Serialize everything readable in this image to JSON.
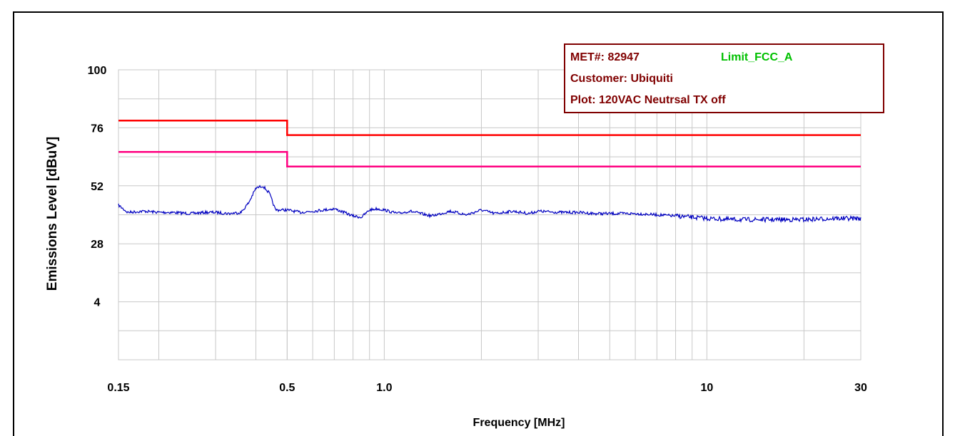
{
  "chart_data": {
    "type": "line",
    "xlabel": "Frequency [MHz]",
    "ylabel": "Emissions Level [dBuV]",
    "x_scale": "log",
    "xlim": [
      0.15,
      30
    ],
    "ylim": [
      -20,
      100
    ],
    "x_ticks": [
      {
        "value": 0.15,
        "label": "0.15"
      },
      {
        "value": 0.5,
        "label": "0.5"
      },
      {
        "value": 1.0,
        "label": "1.0"
      },
      {
        "value": 10,
        "label": "10"
      },
      {
        "value": 30,
        "label": "30"
      }
    ],
    "y_ticks": [
      {
        "value": 100,
        "label": "100"
      },
      {
        "value": 76,
        "label": "76"
      },
      {
        "value": 52,
        "label": "52"
      },
      {
        "value": 28,
        "label": "28"
      },
      {
        "value": 4,
        "label": "4"
      }
    ],
    "grid": true,
    "series": [
      {
        "role": "limit-upper",
        "color": "#ff0000",
        "x": [
          0.15,
          0.5,
          0.5,
          30
        ],
        "y": [
          79,
          79,
          73,
          73
        ]
      },
      {
        "role": "limit-lower",
        "color": "#ff0080",
        "x": [
          0.15,
          0.5,
          0.5,
          30
        ],
        "y": [
          66,
          66,
          60,
          60
        ]
      },
      {
        "role": "measured",
        "color": "#0000c0",
        "x": [
          0.15,
          0.16,
          0.18,
          0.2,
          0.22,
          0.25,
          0.28,
          0.3,
          0.33,
          0.36,
          0.38,
          0.4,
          0.42,
          0.44,
          0.46,
          0.5,
          0.55,
          0.6,
          0.65,
          0.7,
          0.75,
          0.8,
          0.85,
          0.9,
          0.95,
          1.0,
          1.1,
          1.2,
          1.4,
          1.6,
          1.8,
          2.0,
          2.2,
          2.5,
          2.8,
          3.0,
          3.5,
          4.0,
          4.5,
          5.0,
          6.0,
          7.0,
          8.0,
          9.0,
          10,
          12,
          15,
          20,
          25,
          30
        ],
        "y": [
          44,
          41,
          41.5,
          41,
          41,
          40.5,
          41,
          41,
          40.5,
          41,
          45,
          51,
          52,
          49,
          42,
          42,
          41,
          41.5,
          42,
          42.5,
          41,
          39.5,
          39,
          42,
          42.5,
          42,
          40.5,
          41.5,
          39.5,
          41.5,
          40,
          42,
          40.5,
          41.5,
          40.5,
          41.5,
          41,
          41,
          40.5,
          40.5,
          40.5,
          40,
          39.5,
          39,
          38.5,
          38,
          38,
          38,
          38.5,
          38.5
        ]
      }
    ]
  },
  "info_box": {
    "met": "MET#: 82947",
    "limit": "Limit_FCC_A",
    "customer": "Customer: Ubiquiti",
    "plot": "Plot: 120VAC Neutrsal TX off"
  },
  "colors": {
    "info_text": "#800000",
    "limit_label": "#00c000",
    "grid": "#c8c8c8"
  }
}
